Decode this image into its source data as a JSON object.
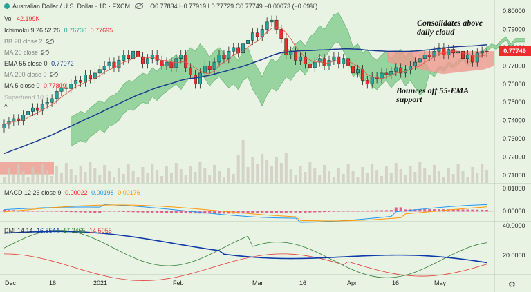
{
  "header": {
    "symbol_title": "Australian Dollar / U.S. Dollar · 1D · FXCM",
    "ohlc": "O0.77834 H0.77919 L0.77729 C0.77749 −0.00073 (−0.09%)",
    "vol_label": "Vol",
    "vol_value": "42.199K",
    "ichimoku_label": "Ichimoku 9 26 52 26",
    "ichimoku_v1": "0.76736",
    "ichimoku_v2": "0.77695",
    "bb_label": "BB 20 close 2",
    "ma20_label": "MA 20 close",
    "ema55_label": "EMA 55 close 0",
    "ema55_value": "0.77072",
    "ma200_label": "MA 200 close 0",
    "ma5_label": "MA 5 close 0",
    "ma5_value": "0.77809",
    "supertrend_label": "Supertrend 10 3"
  },
  "annotations": {
    "top": "Consolidates above\ndaily cloud",
    "mid": "Bounces off 55-EMA\nsupport"
  },
  "price_tag": "0.77749",
  "macd": {
    "label": "MACD 12 26 close 9",
    "v1": "0.00022",
    "v2": "0.00198",
    "v3": "0.00176"
  },
  "dmi": {
    "label": "DMI 14 14",
    "v1": "16.8544",
    "v2": "17.2465",
    "v3": "14.5955"
  },
  "colors": {
    "up": "#26a69a",
    "down": "#ef2b2b",
    "ema55": "#1a3a8f",
    "cloud_bull": "#7ec98a",
    "cloud_bear": "#ef9a8f",
    "macd_line": "#2196f3",
    "signal_line": "#ff9800",
    "dmi_adx": "#0d3aa8",
    "dmi_plus": "#2e7d32",
    "dmi_minus": "#e53935"
  },
  "chart_data": {
    "type": "candlestick",
    "price_axis": [
      "0.80000",
      "0.79000",
      "0.78000",
      "0.77000",
      "0.76000",
      "0.75000",
      "0.74000",
      "0.73000",
      "0.72000",
      "0.71000"
    ],
    "macd_axis": [
      "0.01000",
      "0.00000",
      "-0.01000"
    ],
    "dmi_axis": [
      "40.0000",
      "20.0000"
    ],
    "x_labels": [
      "Dec",
      "16",
      "2021",
      "Feb",
      "Mar",
      "16",
      "Apr",
      "16",
      "May"
    ],
    "closes": [
      0.738,
      0.7395,
      0.741,
      0.74,
      0.743,
      0.745,
      0.747,
      0.7455,
      0.749,
      0.75,
      0.752,
      0.756,
      0.758,
      0.7575,
      0.76,
      0.762,
      0.761,
      0.765,
      0.763,
      0.766,
      0.768,
      0.77,
      0.772,
      0.769,
      0.773,
      0.776,
      0.774,
      0.778,
      0.775,
      0.771,
      0.774,
      0.776,
      0.773,
      0.77,
      0.772,
      0.769,
      0.774,
      0.776,
      0.769,
      0.765,
      0.76,
      0.766,
      0.77,
      0.768,
      0.772,
      0.776,
      0.774,
      0.778,
      0.78,
      0.777,
      0.782,
      0.784,
      0.788,
      0.786,
      0.79,
      0.794,
      0.795,
      0.79,
      0.785,
      0.776,
      0.778,
      0.773,
      0.775,
      0.771,
      0.769,
      0.772,
      0.774,
      0.77,
      0.773,
      0.775,
      0.771,
      0.774,
      0.77,
      0.766,
      0.768,
      0.762,
      0.76,
      0.764,
      0.763,
      0.766,
      0.765,
      0.767,
      0.769,
      0.766,
      0.768,
      0.77,
      0.772,
      0.774,
      0.776,
      0.775,
      0.778,
      0.78,
      0.776,
      0.779,
      0.777,
      0.778,
      0.774,
      0.776,
      0.772,
      0.777,
      0.778,
      0.7775
    ]
  }
}
